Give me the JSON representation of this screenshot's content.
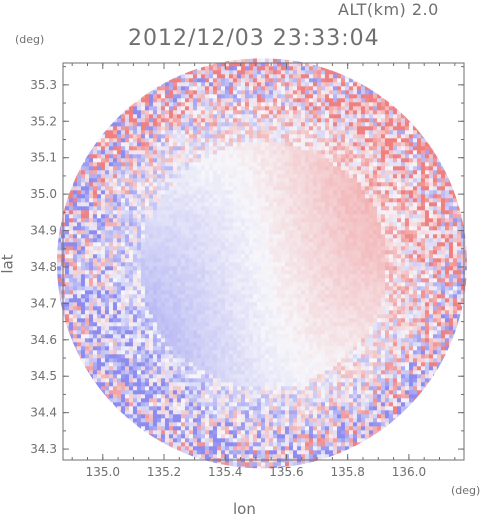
{
  "header": {
    "altitude_label": "ALT(km) 2.0",
    "timestamp": "2012/12/03 23:33:04"
  },
  "chart_data": {
    "type": "heatmap",
    "title": "2012/12/03 23:33:04",
    "subtitle": "ALT(km) 2.0",
    "xlabel": "lon",
    "ylabel": "lat",
    "x_unit": "(deg)",
    "y_unit": "(deg)",
    "xlim": [
      134.87,
      136.18
    ],
    "ylim": [
      34.27,
      35.36
    ],
    "x_ticks": [
      135.0,
      135.2,
      135.4,
      135.6,
      135.8,
      136.0
    ],
    "x_tick_labels": [
      "135.0",
      "135.2",
      "135.4",
      "135.6",
      "135.8",
      "136.0"
    ],
    "y_ticks": [
      34.3,
      34.4,
      34.5,
      34.6,
      34.7,
      34.8,
      34.9,
      35.0,
      35.1,
      35.2,
      35.3
    ],
    "y_tick_labels": [
      "34.3",
      "34.4",
      "34.5",
      "34.6",
      "34.7",
      "34.8",
      "34.9",
      "35.0",
      "35.1",
      "35.2",
      "35.3"
    ],
    "radar_center": [
      135.52,
      34.81
    ],
    "colors": {
      "positive": "#f08080",
      "negative": "#8c8cf0",
      "neutral": "#f4f4fa"
    },
    "grid": false
  }
}
